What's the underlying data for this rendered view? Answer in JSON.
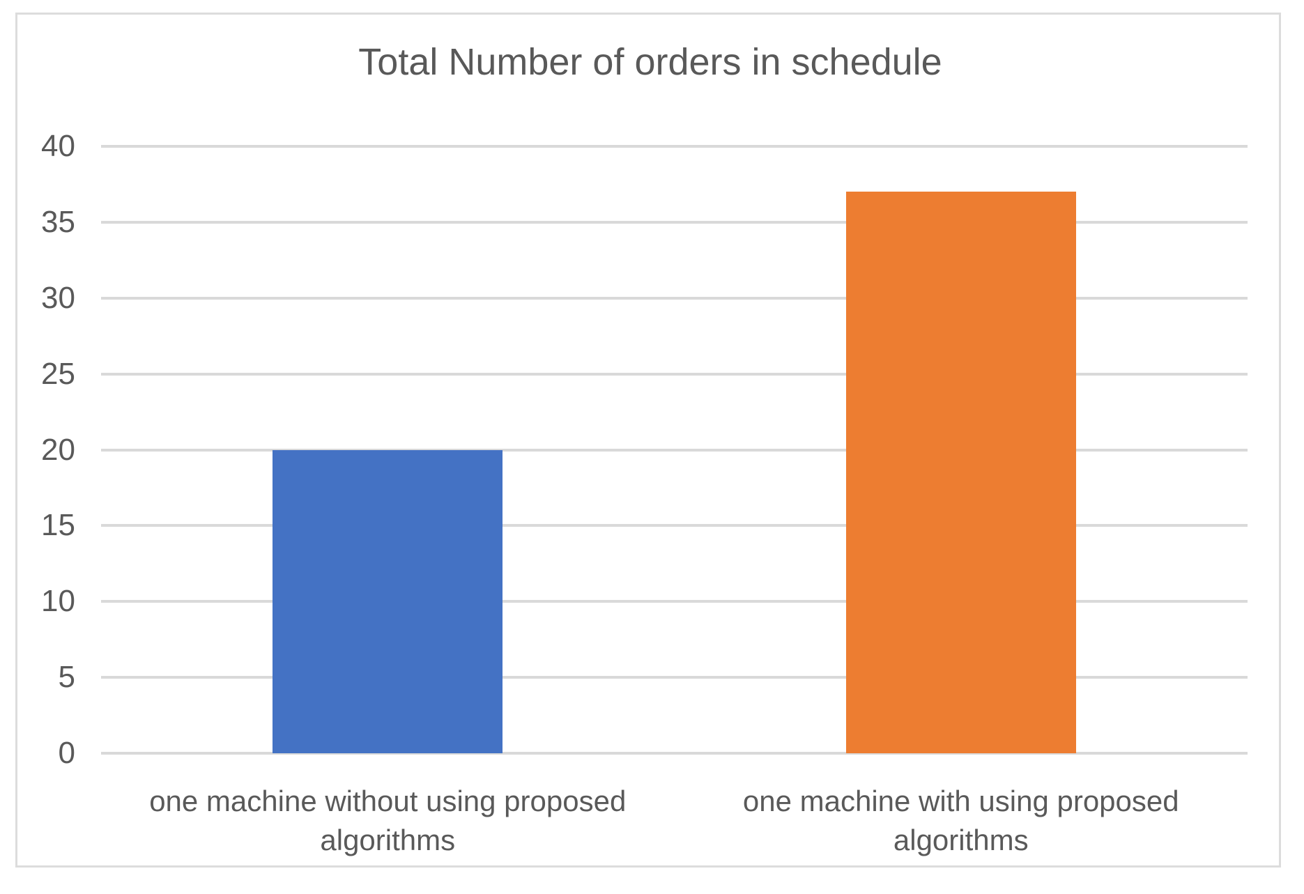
{
  "chart_data": {
    "type": "bar",
    "title": "Total Number of orders in schedule",
    "categories": [
      "one machine without using proposed algorithms",
      "one machine with using proposed algorithms"
    ],
    "values": [
      20,
      37
    ],
    "xlabel": "",
    "ylabel": "",
    "ylim": [
      0,
      40
    ],
    "yticks": [
      0,
      5,
      10,
      15,
      20,
      25,
      30,
      35,
      40
    ],
    "grid": true,
    "legend_position": "none",
    "bar_colors": [
      "#4472C4",
      "#ED7D31"
    ],
    "bar_names": [
      "bar-one-machine-without-algorithms",
      "bar-one-machine-with-algorithms"
    ],
    "text_color": "#595959",
    "gridline_color": "#D9D9D9",
    "frame_border_color": "#DCDCDC",
    "background_color": "#FFFFFF"
  }
}
